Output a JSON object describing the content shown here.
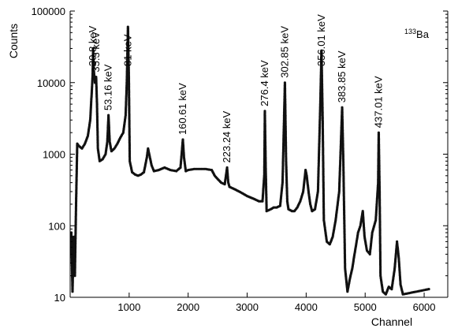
{
  "chart_data": {
    "type": "scatter",
    "title": "",
    "xlabel": "Channel",
    "ylabel": "Counts",
    "isotope": {
      "mass": "133",
      "element": "Ba"
    },
    "xlim": [
      0,
      6400
    ],
    "ylim": [
      10,
      100000
    ],
    "y_scale": "log",
    "grid": false,
    "x_ticks": [
      1000,
      2000,
      3000,
      4000,
      5000,
      6000
    ],
    "y_ticks": [
      10,
      100,
      1000,
      10000,
      100000
    ],
    "x_tick_labels": [
      "1000",
      "2000",
      "3000",
      "4000",
      "5000",
      "6000"
    ],
    "y_tick_labels": [
      "10",
      "100",
      "1000",
      "10000",
      "100000"
    ],
    "peaks": [
      {
        "label": "30.8 keV",
        "channel": 390,
        "counts": 30000
      },
      {
        "label": "35.3 keV",
        "channel": 440,
        "counts": 12000
      },
      {
        "label": "53.16 keV",
        "channel": 650,
        "counts": 3500
      },
      {
        "label": "81 keV",
        "channel": 980,
        "counts": 60000
      },
      {
        "label": "160.61 keV",
        "channel": 1910,
        "counts": 1600
      },
      {
        "label": "223.24 keV",
        "channel": 2660,
        "counts": 650
      },
      {
        "label": "276.4 keV",
        "channel": 3300,
        "counts": 4000
      },
      {
        "label": "302.85 keV",
        "channel": 3640,
        "counts": 10000
      },
      {
        "label": "356.01 keV",
        "channel": 4260,
        "counts": 28000
      },
      {
        "label": "383.85 keV",
        "channel": 4610,
        "counts": 4500
      },
      {
        "label": "437.01 keV",
        "channel": 5230,
        "counts": 2000
      }
    ],
    "spectrum": [
      [
        20,
        80
      ],
      [
        40,
        12
      ],
      [
        60,
        70
      ],
      [
        80,
        20
      ],
      [
        100,
        200
      ],
      [
        120,
        1400
      ],
      [
        150,
        1300
      ],
      [
        200,
        1200
      ],
      [
        250,
        1400
      ],
      [
        300,
        1800
      ],
      [
        340,
        3000
      ],
      [
        360,
        6000
      ],
      [
        380,
        12000
      ],
      [
        390,
        30000
      ],
      [
        400,
        15000
      ],
      [
        420,
        10000
      ],
      [
        440,
        12000
      ],
      [
        455,
        5000
      ],
      [
        470,
        1200
      ],
      [
        500,
        800
      ],
      [
        550,
        850
      ],
      [
        600,
        1000
      ],
      [
        630,
        1500
      ],
      [
        650,
        3500
      ],
      [
        670,
        1500
      ],
      [
        700,
        1100
      ],
      [
        750,
        1200
      ],
      [
        800,
        1400
      ],
      [
        850,
        1700
      ],
      [
        900,
        2000
      ],
      [
        940,
        3500
      ],
      [
        960,
        10000
      ],
      [
        980,
        60000
      ],
      [
        995,
        12000
      ],
      [
        1010,
        800
      ],
      [
        1050,
        560
      ],
      [
        1100,
        520
      ],
      [
        1150,
        500
      ],
      [
        1200,
        520
      ],
      [
        1250,
        560
      ],
      [
        1300,
        900
      ],
      [
        1320,
        1200
      ],
      [
        1340,
        1000
      ],
      [
        1380,
        700
      ],
      [
        1420,
        580
      ],
      [
        1500,
        600
      ],
      [
        1600,
        650
      ],
      [
        1700,
        600
      ],
      [
        1800,
        580
      ],
      [
        1870,
        650
      ],
      [
        1910,
        1600
      ],
      [
        1930,
        900
      ],
      [
        1960,
        580
      ],
      [
        2000,
        600
      ],
      [
        2100,
        620
      ],
      [
        2200,
        620
      ],
      [
        2300,
        620
      ],
      [
        2400,
        600
      ],
      [
        2450,
        500
      ],
      [
        2500,
        450
      ],
      [
        2560,
        400
      ],
      [
        2620,
        380
      ],
      [
        2660,
        650
      ],
      [
        2680,
        400
      ],
      [
        2700,
        350
      ],
      [
        2800,
        320
      ],
      [
        2900,
        290
      ],
      [
        3000,
        260
      ],
      [
        3100,
        240
      ],
      [
        3200,
        220
      ],
      [
        3260,
        220
      ],
      [
        3290,
        500
      ],
      [
        3300,
        4000
      ],
      [
        3315,
        600
      ],
      [
        3330,
        160
      ],
      [
        3400,
        170
      ],
      [
        3450,
        180
      ],
      [
        3500,
        180
      ],
      [
        3560,
        190
      ],
      [
        3600,
        400
      ],
      [
        3640,
        10000
      ],
      [
        3660,
        800
      ],
      [
        3680,
        220
      ],
      [
        3700,
        170
      ],
      [
        3760,
        160
      ],
      [
        3800,
        160
      ],
      [
        3850,
        180
      ],
      [
        3900,
        220
      ],
      [
        3950,
        300
      ],
      [
        3990,
        600
      ],
      [
        4010,
        500
      ],
      [
        4040,
        300
      ],
      [
        4070,
        200
      ],
      [
        4100,
        160
      ],
      [
        4150,
        170
      ],
      [
        4200,
        300
      ],
      [
        4240,
        5000
      ],
      [
        4260,
        28000
      ],
      [
        4280,
        3000
      ],
      [
        4300,
        120
      ],
      [
        4350,
        60
      ],
      [
        4400,
        55
      ],
      [
        4450,
        70
      ],
      [
        4500,
        120
      ],
      [
        4560,
        300
      ],
      [
        4590,
        1500
      ],
      [
        4610,
        4500
      ],
      [
        4630,
        800
      ],
      [
        4660,
        25
      ],
      [
        4700,
        12
      ],
      [
        4740,
        18
      ],
      [
        4780,
        25
      ],
      [
        4820,
        40
      ],
      [
        4880,
        80
      ],
      [
        4920,
        100
      ],
      [
        4960,
        160
      ],
      [
        4990,
        70
      ],
      [
        5030,
        45
      ],
      [
        5080,
        40
      ],
      [
        5120,
        80
      ],
      [
        5180,
        120
      ],
      [
        5220,
        400
      ],
      [
        5230,
        2000
      ],
      [
        5245,
        300
      ],
      [
        5260,
        20
      ],
      [
        5300,
        12
      ],
      [
        5350,
        11
      ],
      [
        5400,
        14
      ],
      [
        5450,
        13
      ],
      [
        5500,
        25
      ],
      [
        5540,
        60
      ],
      [
        5570,
        35
      ],
      [
        5600,
        15
      ],
      [
        5640,
        11
      ],
      [
        6080,
        13
      ]
    ]
  }
}
